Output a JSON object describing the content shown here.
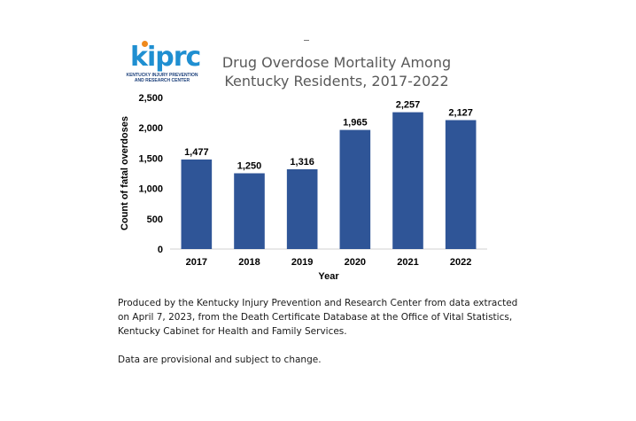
{
  "logo": {
    "mark": "kiprc",
    "line1": "KENTUCKY INJURY PREVENTION",
    "line2": "AND RESEARCH CENTER"
  },
  "chart_data": {
    "type": "bar",
    "title_lines": [
      "Drug Overdose Mortality Among",
      "Kentucky Residents, 2017-2022"
    ],
    "categories": [
      "2017",
      "2018",
      "2019",
      "2020",
      "2021",
      "2022"
    ],
    "values": [
      1477,
      1250,
      1316,
      1965,
      2257,
      2127
    ],
    "data_labels": [
      "1,477",
      "1,250",
      "1,316",
      "1,965",
      "2,257",
      "2,127"
    ],
    "xlabel": "Year",
    "ylabel": "Count of fatal overdoses",
    "ylim": [
      0,
      2500
    ],
    "yticks": [
      0,
      500,
      1000,
      1500,
      2000,
      2500
    ],
    "ytick_labels": [
      "0",
      "500",
      "1,000",
      "1,500",
      "2,000",
      "2,500"
    ],
    "grid": false,
    "bar_color": "#2f5597"
  },
  "caption": {
    "source": "Produced by the Kentucky Injury Prevention and Research Center from data extracted on April 7, 2023, from the Death Certificate Database at the Office of Vital Statistics, Kentucky Cabinet for Health and Family Services.",
    "note": "Data are provisional and subject to change."
  }
}
